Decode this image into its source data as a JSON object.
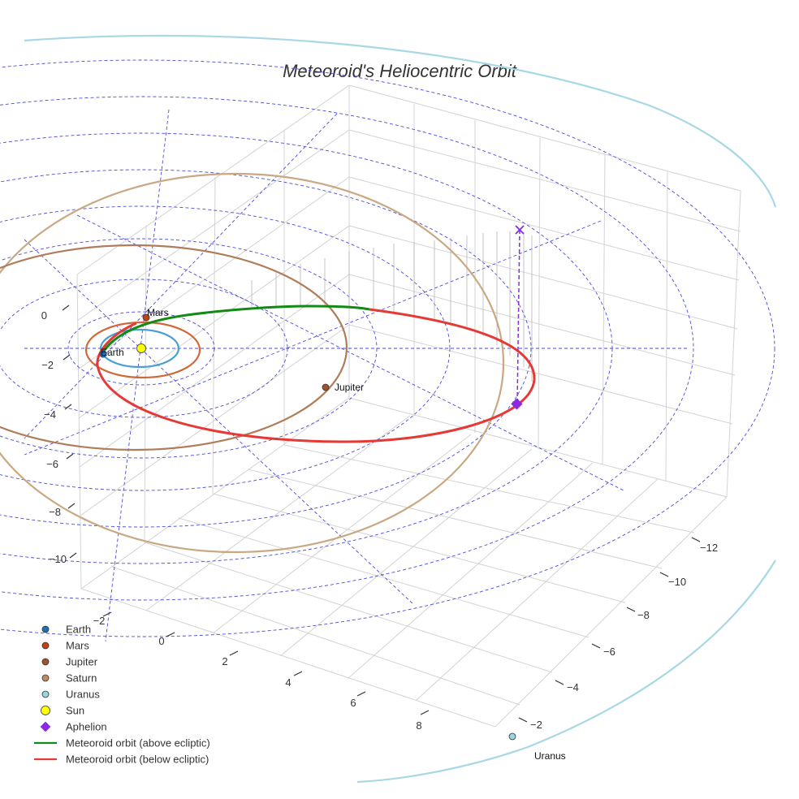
{
  "chart_data": {
    "type": "line",
    "title": "Meteoroid's Heliocentric Orbit",
    "axes": {
      "x_ticks": [
        "−2",
        "0",
        "2",
        "4",
        "6",
        "8"
      ],
      "y_ticks": [
        "−2",
        "−4",
        "−6",
        "−8",
        "−10",
        "−12"
      ],
      "z_ticks": [
        "0",
        "−2",
        "−4",
        "−6",
        "−8",
        "−10"
      ]
    },
    "grid": "on",
    "legend_position": "bottom-left",
    "bodies": [
      {
        "name": "Earth",
        "label": "Earth",
        "color": "#1f6fb4",
        "orbit_color": "#4a9fd0"
      },
      {
        "name": "Mars",
        "label": "Mars",
        "color": "#c1440e",
        "orbit_color": "#d0693a"
      },
      {
        "name": "Jupiter",
        "label": "Jupiter",
        "color": "#a0522d",
        "orbit_color": "#b07d5a"
      },
      {
        "name": "Saturn",
        "label": "",
        "color": "#c08a5e",
        "orbit_color": "#c9a882"
      },
      {
        "name": "Uranus",
        "label": "Uranus",
        "color": "#9bd3e2",
        "orbit_color": "#a8d8e6"
      }
    ],
    "sun": {
      "name": "Sun",
      "color": "#ffff00"
    },
    "aphelion": {
      "name": "Aphelion",
      "color": "#8a2be2"
    },
    "meteoroid_orbit": [
      {
        "name": "Meteoroid orbit (above ecliptic)",
        "color": "#138a13"
      },
      {
        "name": "Meteoroid orbit (below ecliptic)",
        "color": "#e53935"
      }
    ],
    "ecliptic_grid_color": "#4b4bdc"
  },
  "legend": [
    {
      "label": "Earth",
      "symbol": "circle",
      "color": "#1f6fb4"
    },
    {
      "label": "Mars",
      "symbol": "circle",
      "color": "#c1440e"
    },
    {
      "label": "Jupiter",
      "symbol": "circle",
      "color": "#a0522d"
    },
    {
      "label": "Saturn",
      "symbol": "circle",
      "color": "#c08a5e"
    },
    {
      "label": "Uranus",
      "symbol": "circle",
      "color": "#9bd3e2"
    },
    {
      "label": "Sun",
      "symbol": "circle",
      "color": "#ffff00"
    },
    {
      "label": "Aphelion",
      "symbol": "diamond",
      "color": "#8a2be2"
    },
    {
      "label": "Meteoroid orbit (above ecliptic)",
      "symbol": "line",
      "color": "#138a13"
    },
    {
      "label": "Meteoroid orbit (below ecliptic)",
      "symbol": "line",
      "color": "#e53935"
    }
  ]
}
